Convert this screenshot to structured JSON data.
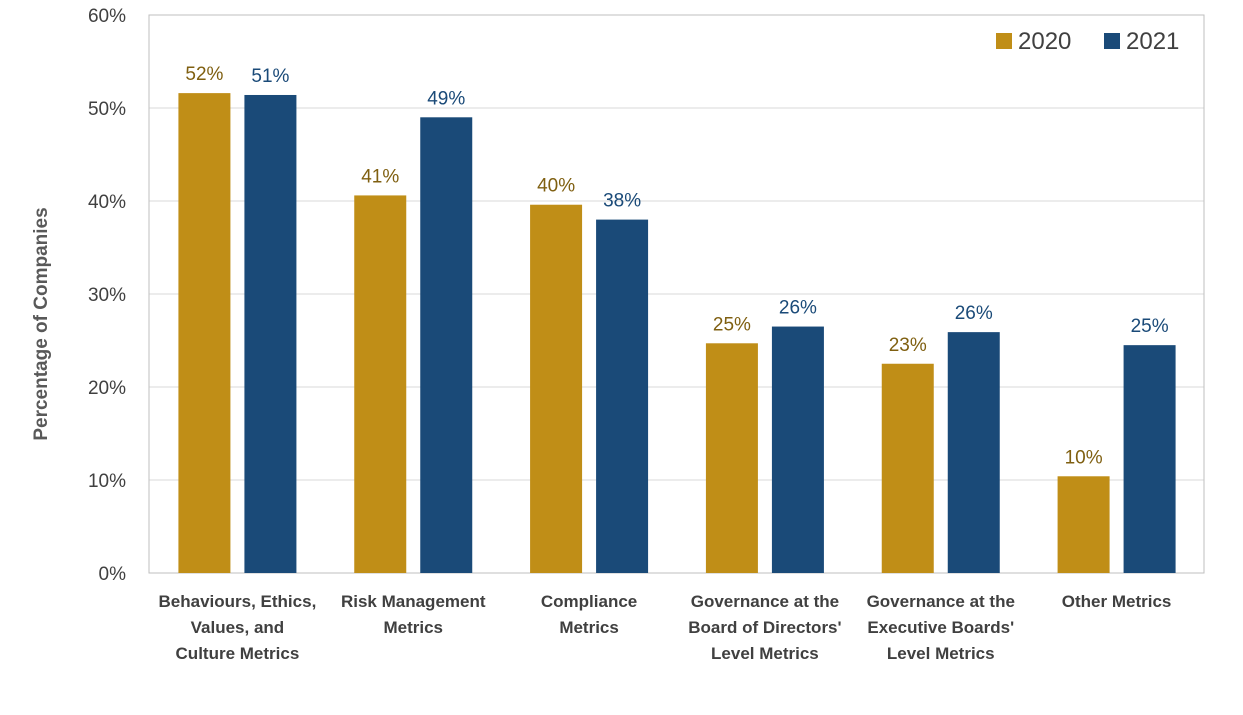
{
  "chart_data": {
    "type": "bar",
    "title": "",
    "xlabel": "",
    "ylabel": "Percentage of Companies",
    "ylim": [
      0,
      60
    ],
    "yticks": [
      "0%",
      "10%",
      "20%",
      "30%",
      "40%",
      "50%",
      "60%"
    ],
    "grid": true,
    "legend_position": "top-right",
    "categories": [
      [
        "Behaviours, Ethics,",
        "Values, and",
        "Culture Metrics"
      ],
      [
        "Risk Management",
        "Metrics"
      ],
      [
        "Compliance",
        "Metrics"
      ],
      [
        "Governance at the",
        "Board of Directors'",
        "Level Metrics"
      ],
      [
        "Governance at the",
        "Executive Boards'",
        "Level Metrics"
      ],
      [
        "Other Metrics"
      ]
    ],
    "series": [
      {
        "name": "2020",
        "color": "#C08E17",
        "label_color": "#7F5F10",
        "values": [
          51.6,
          40.6,
          39.6,
          24.7,
          22.5,
          10.4
        ],
        "labels": [
          "52%",
          "41%",
          "40%",
          "25%",
          "23%",
          "10%"
        ]
      },
      {
        "name": "2021",
        "color": "#1A4A78",
        "label_color": "#1A4A78",
        "values": [
          51.4,
          49.0,
          38.0,
          26.5,
          25.9,
          24.5
        ],
        "labels": [
          "51%",
          "49%",
          "38%",
          "26%",
          "26%",
          "25%"
        ]
      }
    ]
  }
}
